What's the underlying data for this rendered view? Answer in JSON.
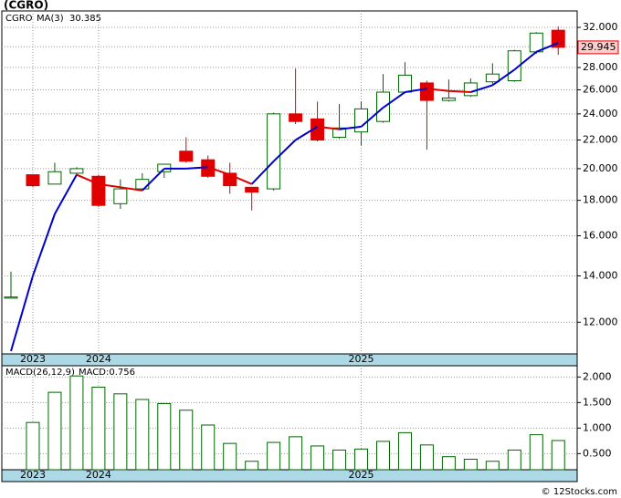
{
  "chart_data": [
    {
      "type": "candlestick",
      "title": "(CGRO)",
      "log_scale": true,
      "grid": true,
      "categories": [
        null,
        "2023",
        null,
        null,
        "2024",
        null,
        null,
        null,
        null,
        null,
        null,
        null,
        null,
        null,
        null,
        null,
        "2025",
        null,
        null,
        null,
        null,
        null,
        null,
        null,
        null,
        null
      ],
      "series": [
        {
          "name": "CGRO",
          "color": "#006400",
          "down_color": "#e00000",
          "open": [
            13.0,
            19.6,
            19.0,
            19.7,
            19.5,
            17.8,
            18.7,
            19.8,
            21.2,
            20.6,
            19.7,
            18.8,
            18.7,
            24.0,
            23.6,
            22.2,
            22.6,
            23.4,
            25.8,
            26.6,
            25.1,
            25.5,
            26.7,
            26.8,
            29.5,
            31.7
          ],
          "high": [
            14.2,
            19.6,
            20.4,
            20.1,
            19.6,
            19.3,
            19.7,
            20.3,
            22.2,
            20.9,
            20.4,
            18.8,
            24.1,
            27.9,
            25.0,
            24.8,
            25.0,
            27.4,
            28.5,
            26.8,
            26.9,
            27.0,
            28.4,
            29.7,
            31.5,
            32.1
          ],
          "low": [
            13.0,
            18.8,
            19.0,
            19.6,
            17.6,
            17.5,
            18.6,
            19.4,
            20.4,
            19.4,
            18.4,
            17.4,
            18.6,
            23.2,
            21.9,
            22.1,
            21.6,
            23.3,
            25.7,
            21.3,
            25.0,
            25.4,
            26.5,
            26.7,
            29.3,
            29.2
          ],
          "close": [
            13.05,
            18.9,
            19.8,
            20.0,
            17.7,
            18.7,
            19.3,
            20.3,
            20.5,
            19.5,
            18.9,
            18.5,
            24.0,
            23.4,
            22.0,
            22.9,
            24.4,
            25.8,
            27.3,
            25.1,
            25.3,
            26.6,
            27.4,
            29.6,
            31.4,
            29.945
          ]
        },
        {
          "name": "MA(3)",
          "color": "#0000cc",
          "down_color": "#dd0000",
          "values": [
            10.9,
            14.0,
            17.2,
            19.6,
            19.0,
            18.8,
            18.6,
            20.0,
            20.0,
            20.1,
            19.6,
            19.0,
            20.5,
            22.0,
            23.0,
            22.8,
            23.0,
            24.5,
            25.8,
            26.1,
            25.9,
            25.8,
            26.4,
            27.8,
            29.5,
            30.385
          ]
        }
      ],
      "ylim": [
        10.8,
        33.8
      ],
      "yticks": [
        {
          "value": 12,
          "label": "12.000"
        },
        {
          "value": 14,
          "label": "14.000"
        },
        {
          "value": 16,
          "label": "16.000"
        },
        {
          "value": 18,
          "label": "18.000"
        },
        {
          "value": 20,
          "label": "20.000"
        },
        {
          "value": 22,
          "label": "22.000"
        },
        {
          "value": 24,
          "label": "24.000"
        },
        {
          "value": 26,
          "label": "26.000"
        },
        {
          "value": 28,
          "label": "28.000"
        },
        {
          "value": 30,
          "label": "30.000"
        },
        {
          "value": 32,
          "label": "32.000"
        }
      ]
    },
    {
      "type": "bar",
      "title": "MACD(26,12,9)",
      "current_label": "MACD:0.756",
      "color": "#006400",
      "grid": true,
      "categories": [
        null,
        "2023",
        null,
        null,
        "2024",
        null,
        null,
        null,
        null,
        null,
        null,
        null,
        null,
        null,
        null,
        null,
        "2025",
        null,
        null,
        null,
        null,
        null,
        null,
        null,
        null,
        null
      ],
      "values": [
        null,
        1.11,
        1.7,
        2.02,
        1.8,
        1.67,
        1.56,
        1.48,
        1.35,
        1.06,
        0.7,
        0.35,
        0.72,
        0.83,
        0.65,
        0.57,
        0.59,
        0.74,
        0.91,
        0.67,
        0.44,
        0.39,
        0.35,
        0.57,
        0.87,
        0.756
      ],
      "ylim": [
        0.185,
        2.22
      ],
      "yticks": [
        {
          "value": 0.5,
          "label": "0.500"
        },
        {
          "value": 1,
          "label": "1.000"
        },
        {
          "value": 1.5,
          "label": "1.500"
        },
        {
          "value": 2,
          "label": "2.000"
        }
      ]
    }
  ],
  "footer": "© 12Stocks.com"
}
